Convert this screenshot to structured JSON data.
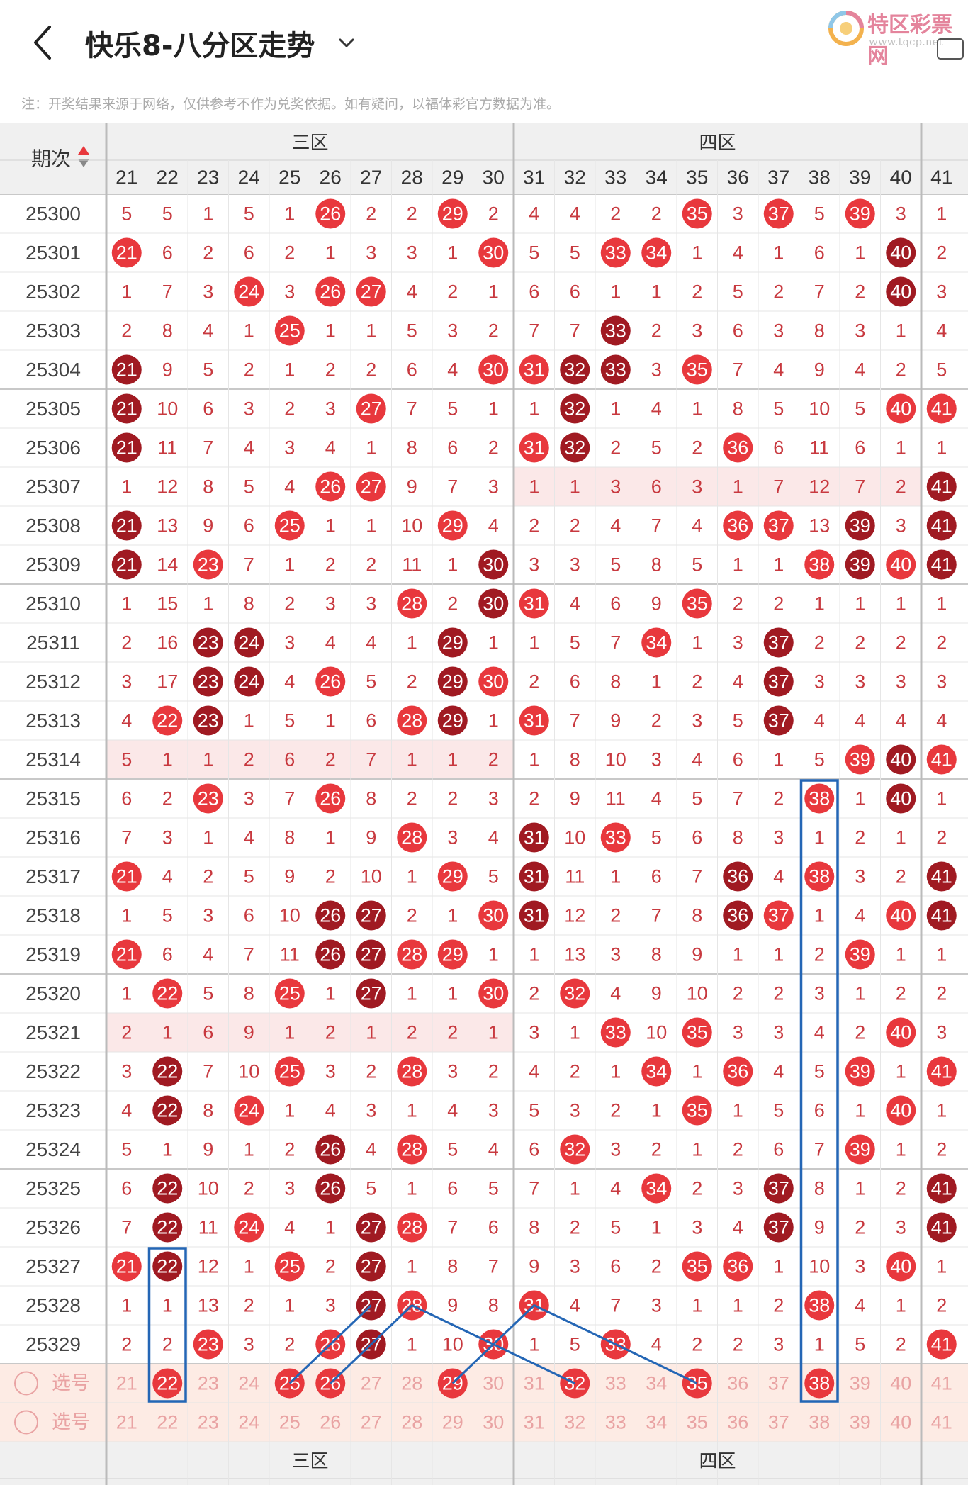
{
  "header": {
    "title": "快乐8-八分区走势",
    "logo_text": "特区彩票网",
    "logo_url": "www.tqcp.net"
  },
  "notice": "注：开奖结果来源于网络，仅供参考不作为兑奖依据。如有疑问，以福体彩官方数据为准。",
  "table": {
    "period_header": "期次",
    "zones": [
      "三区",
      "四区"
    ],
    "columns": [
      21,
      22,
      23,
      24,
      25,
      26,
      27,
      28,
      29,
      30,
      31,
      32,
      33,
      34,
      35,
      36,
      37,
      38,
      39,
      40,
      41
    ],
    "rows": [
      {
        "period": "25300",
        "values": [
          5,
          5,
          1,
          5,
          1,
          "H",
          2,
          2,
          "H",
          2,
          4,
          4,
          2,
          2,
          "H",
          3,
          "H",
          5,
          "H",
          3,
          1
        ]
      },
      {
        "period": "25301",
        "values": [
          "H",
          6,
          2,
          6,
          2,
          1,
          3,
          3,
          1,
          "H",
          5,
          5,
          "H",
          "H",
          1,
          4,
          1,
          6,
          1,
          "H",
          2
        ]
      },
      {
        "period": "25302",
        "values": [
          1,
          7,
          3,
          "H",
          3,
          "H",
          "H",
          4,
          2,
          1,
          6,
          6,
          1,
          1,
          2,
          5,
          2,
          7,
          2,
          "H",
          3
        ]
      },
      {
        "period": "25303",
        "values": [
          2,
          8,
          4,
          1,
          "H",
          1,
          1,
          5,
          3,
          2,
          7,
          7,
          "H",
          2,
          3,
          6,
          3,
          8,
          3,
          1,
          4
        ]
      },
      {
        "period": "25304",
        "values": [
          "H",
          9,
          5,
          2,
          1,
          2,
          2,
          6,
          4,
          "H",
          "H",
          "H",
          "H",
          3,
          "H",
          7,
          4,
          9,
          4,
          2,
          5
        ]
      },
      {
        "period": "25305",
        "values": [
          "H",
          10,
          6,
          3,
          2,
          3,
          "H",
          7,
          5,
          1,
          1,
          "H",
          1,
          4,
          1,
          8,
          5,
          10,
          5,
          "H",
          "H"
        ]
      },
      {
        "period": "25306",
        "values": [
          "H",
          11,
          7,
          4,
          3,
          4,
          1,
          8,
          6,
          2,
          "H",
          "H",
          2,
          5,
          2,
          "H",
          6,
          11,
          6,
          1,
          1
        ]
      },
      {
        "period": "25307",
        "values": [
          1,
          12,
          8,
          5,
          4,
          "H",
          "H",
          9,
          7,
          3,
          1,
          1,
          3,
          6,
          3,
          1,
          7,
          12,
          7,
          2,
          "H"
        ]
      },
      {
        "period": "25308",
        "values": [
          "H",
          13,
          9,
          6,
          "H",
          1,
          1,
          10,
          "H",
          4,
          2,
          2,
          4,
          7,
          4,
          "H",
          "H",
          13,
          "H",
          3,
          "H"
        ]
      },
      {
        "period": "25309",
        "values": [
          "H",
          14,
          "H",
          7,
          1,
          2,
          2,
          11,
          1,
          "H",
          3,
          3,
          5,
          8,
          5,
          1,
          1,
          "H",
          "H",
          "H",
          "H"
        ]
      },
      {
        "period": "25310",
        "values": [
          1,
          15,
          1,
          8,
          2,
          3,
          3,
          "H",
          2,
          "H",
          "H",
          4,
          6,
          9,
          "H",
          2,
          2,
          1,
          1,
          1,
          1
        ]
      },
      {
        "period": "25311",
        "values": [
          2,
          16,
          "H",
          "H",
          3,
          4,
          4,
          1,
          "H",
          1,
          1,
          5,
          7,
          "H",
          1,
          3,
          "H",
          2,
          2,
          2,
          2
        ]
      },
      {
        "period": "25312",
        "values": [
          3,
          17,
          "H",
          "H",
          4,
          "H",
          5,
          2,
          "H",
          "H",
          2,
          6,
          8,
          1,
          2,
          4,
          "H",
          3,
          3,
          3,
          3
        ]
      },
      {
        "period": "25313",
        "values": [
          4,
          "H",
          "H",
          1,
          5,
          1,
          6,
          "H",
          "H",
          1,
          "H",
          7,
          9,
          2,
          3,
          5,
          "H",
          4,
          4,
          4,
          4
        ]
      },
      {
        "period": "25314",
        "values": [
          5,
          1,
          1,
          2,
          6,
          2,
          7,
          1,
          1,
          2,
          1,
          8,
          10,
          3,
          4,
          6,
          1,
          5,
          "H",
          "H",
          "H"
        ]
      },
      {
        "period": "25315",
        "values": [
          6,
          2,
          "H",
          3,
          7,
          "H",
          8,
          2,
          2,
          3,
          2,
          9,
          11,
          4,
          5,
          7,
          2,
          "H",
          1,
          "H",
          1
        ]
      },
      {
        "period": "25316",
        "values": [
          7,
          3,
          1,
          4,
          8,
          1,
          9,
          "H",
          3,
          4,
          "H",
          10,
          "H",
          5,
          6,
          8,
          3,
          1,
          2,
          1,
          2
        ]
      },
      {
        "period": "25317",
        "values": [
          "H",
          4,
          2,
          5,
          9,
          2,
          10,
          1,
          "H",
          5,
          "H",
          11,
          1,
          6,
          7,
          "H",
          4,
          "H",
          3,
          2,
          "H"
        ]
      },
      {
        "period": "25318",
        "values": [
          1,
          5,
          3,
          6,
          10,
          "H",
          "H",
          2,
          1,
          "H",
          "H",
          12,
          2,
          7,
          8,
          "H",
          "H",
          1,
          4,
          "H",
          "H"
        ]
      },
      {
        "period": "25319",
        "values": [
          "H",
          6,
          4,
          7,
          11,
          "H",
          "H",
          "H",
          "H",
          1,
          1,
          13,
          3,
          8,
          9,
          1,
          1,
          2,
          "H",
          1,
          1
        ]
      },
      {
        "period": "25320",
        "values": [
          1,
          "H",
          5,
          8,
          "H",
          1,
          "H",
          1,
          1,
          "H",
          2,
          "H",
          4,
          9,
          10,
          2,
          2,
          3,
          1,
          2,
          2
        ]
      },
      {
        "period": "25321",
        "values": [
          2,
          1,
          6,
          9,
          1,
          2,
          1,
          2,
          2,
          1,
          3,
          1,
          "H",
          10,
          "H",
          3,
          3,
          4,
          2,
          "H",
          3
        ]
      },
      {
        "period": "25322",
        "values": [
          3,
          "H",
          7,
          10,
          "H",
          3,
          2,
          "H",
          3,
          2,
          4,
          2,
          1,
          "H",
          1,
          "H",
          4,
          5,
          "H",
          1,
          "H"
        ]
      },
      {
        "period": "25323",
        "values": [
          4,
          "H",
          8,
          "H",
          1,
          4,
          3,
          1,
          4,
          3,
          5,
          3,
          2,
          1,
          "H",
          1,
          5,
          6,
          1,
          "H",
          1
        ]
      },
      {
        "period": "25324",
        "values": [
          5,
          1,
          9,
          1,
          2,
          "H",
          4,
          "H",
          5,
          4,
          6,
          "H",
          3,
          2,
          1,
          2,
          6,
          7,
          "H",
          1,
          2
        ]
      },
      {
        "period": "25325",
        "values": [
          6,
          "H",
          10,
          2,
          3,
          "H",
          5,
          1,
          6,
          5,
          7,
          1,
          4,
          "H",
          2,
          3,
          "H",
          8,
          1,
          2,
          "H"
        ]
      },
      {
        "period": "25326",
        "values": [
          7,
          "H",
          11,
          "H",
          4,
          1,
          "H",
          "H",
          7,
          6,
          8,
          2,
          5,
          1,
          3,
          4,
          "H",
          9,
          2,
          3,
          "H"
        ]
      },
      {
        "period": "25327",
        "values": [
          "H",
          "H",
          12,
          1,
          "H",
          2,
          "H",
          1,
          8,
          7,
          9,
          3,
          6,
          2,
          "H",
          "H",
          1,
          10,
          3,
          "H",
          1
        ]
      },
      {
        "period": "25328",
        "values": [
          1,
          1,
          13,
          2,
          1,
          3,
          "H",
          "H",
          9,
          8,
          "H",
          4,
          7,
          3,
          1,
          1,
          2,
          "H",
          4,
          1,
          2
        ]
      },
      {
        "period": "25329",
        "values": [
          2,
          2,
          "H",
          3,
          2,
          "H",
          "H",
          1,
          10,
          "H",
          1,
          5,
          "H",
          4,
          2,
          2,
          3,
          1,
          5,
          2,
          "H"
        ]
      }
    ],
    "select_label": "选号",
    "select_rows": [
      {
        "label": "选号",
        "selected": [
          22,
          25,
          26,
          29,
          32,
          35,
          38
        ]
      },
      {
        "label": "选号",
        "selected": []
      }
    ]
  },
  "colors": {
    "hit_red": "#e8383d",
    "hit_dark": "#a01a22",
    "number_text": "#c8393f",
    "period_text": "#444444",
    "highlight_box": "#2466b5",
    "select_bg": "#fdebe4"
  }
}
